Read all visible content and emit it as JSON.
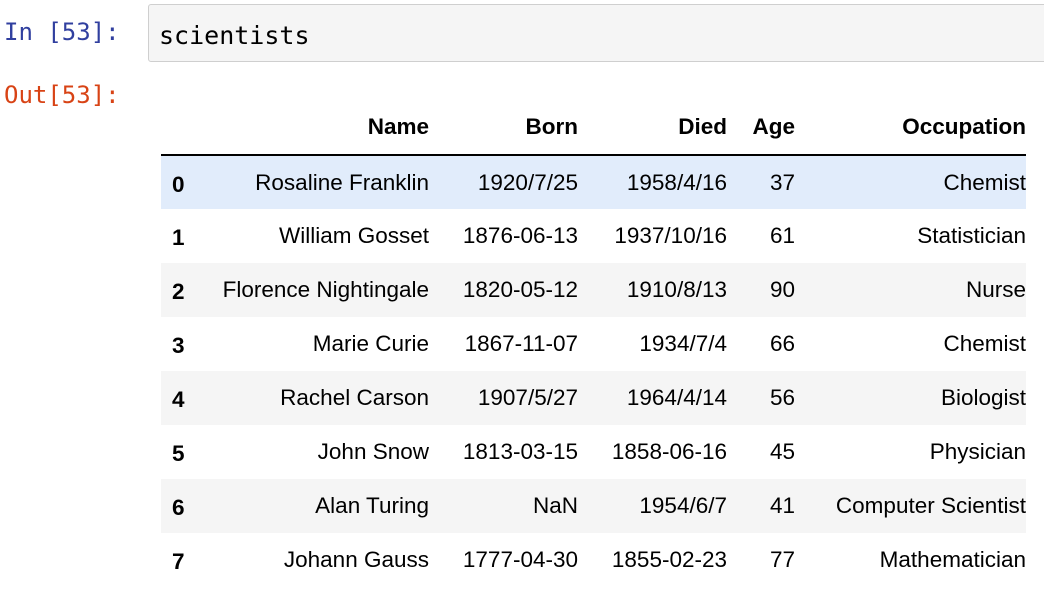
{
  "cell": {
    "in_prompt": "In [53]:",
    "out_prompt": "Out[53]:",
    "code": "scientists"
  },
  "table": {
    "columns": [
      "",
      "Name",
      "Born",
      "Died",
      "Age",
      "Occupation"
    ],
    "rows": [
      {
        "index": "0",
        "name": "Rosaline Franklin",
        "born": "1920/7/25",
        "died": "1958/4/16",
        "age": "37",
        "occupation": "Chemist"
      },
      {
        "index": "1",
        "name": "William Gosset",
        "born": "1876-06-13",
        "died": "1937/10/16",
        "age": "61",
        "occupation": "Statistician"
      },
      {
        "index": "2",
        "name": "Florence Nightingale",
        "born": "1820-05-12",
        "died": "1910/8/13",
        "age": "90",
        "occupation": "Nurse"
      },
      {
        "index": "3",
        "name": "Marie Curie",
        "born": "1867-11-07",
        "died": "1934/7/4",
        "age": "66",
        "occupation": "Chemist"
      },
      {
        "index": "4",
        "name": "Rachel Carson",
        "born": "1907/5/27",
        "died": "1964/4/14",
        "age": "56",
        "occupation": "Biologist"
      },
      {
        "index": "5",
        "name": "John Snow",
        "born": "1813-03-15",
        "died": "1858-06-16",
        "age": "45",
        "occupation": "Physician"
      },
      {
        "index": "6",
        "name": "Alan Turing",
        "born": "NaN",
        "died": "1954/6/7",
        "age": "41",
        "occupation": "Computer Scientist"
      },
      {
        "index": "7",
        "name": "Johann Gauss",
        "born": "1777-04-30",
        "died": "1855-02-23",
        "age": "77",
        "occupation": "Mathematician"
      }
    ]
  },
  "colors": {
    "in_prompt": "#303f9f",
    "out_prompt": "#d84315",
    "row_hover": "#e1ecfb",
    "row_stripe": "#f5f5f5"
  }
}
